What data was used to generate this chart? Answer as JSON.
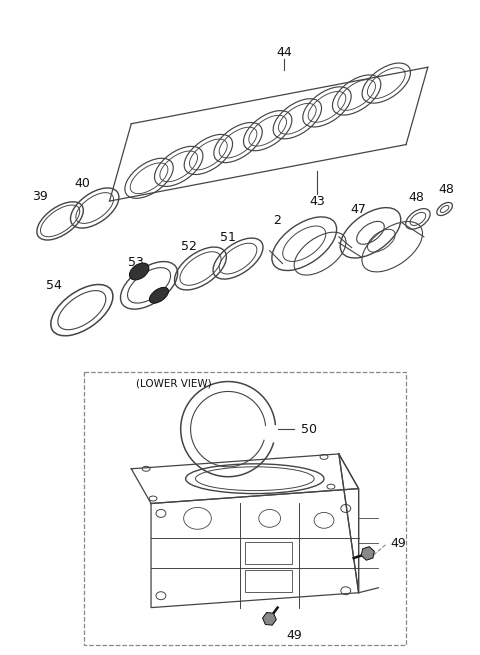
{
  "background_color": "#ffffff",
  "line_color": "#444444",
  "dark_color": "#111111",
  "gray_color": "#888888",
  "fig_width": 4.8,
  "fig_height": 6.55,
  "dpi": 100
}
